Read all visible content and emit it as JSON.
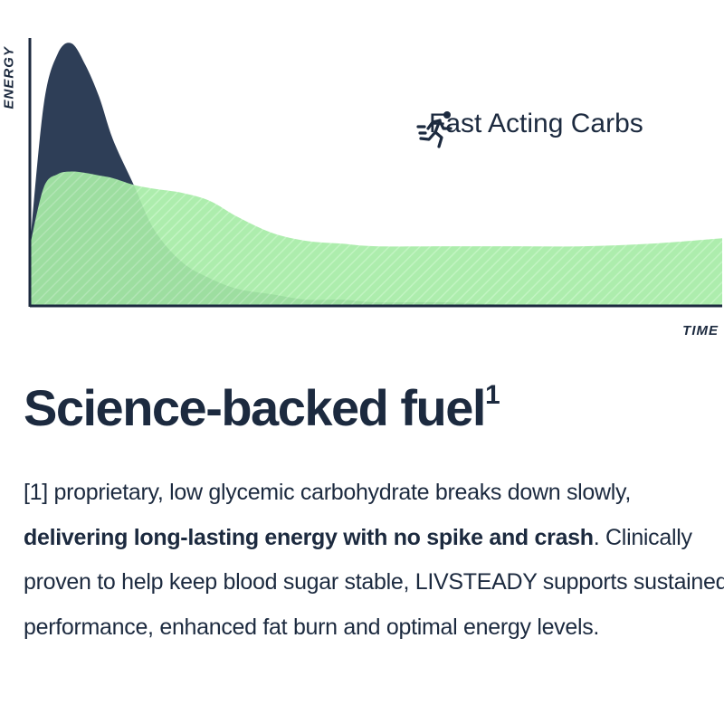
{
  "chart_data": {
    "type": "area",
    "xlabel": "TIME",
    "ylabel": "ENERGY",
    "grid": false,
    "legend_position": "top-right",
    "x": [
      0,
      2,
      4,
      6,
      8,
      10,
      12,
      15,
      18,
      22,
      26,
      30,
      35,
      40,
      45,
      50,
      60,
      70,
      80,
      90,
      100
    ],
    "series": [
      {
        "name": "Fast Acting Carbs",
        "color": "#2e3e57",
        "values": [
          22,
          75,
          94,
          98,
          90,
          78,
          62,
          45,
          28,
          16,
          10,
          6,
          4,
          2,
          2,
          1,
          1,
          0,
          0,
          0,
          0
        ]
      },
      {
        "name": "",
        "color": "#a6eca6",
        "values": [
          22,
          44,
          49,
          50,
          49.5,
          48.5,
          47.5,
          45,
          43.5,
          42,
          39,
          33,
          27,
          24,
          23,
          22,
          22,
          22,
          22,
          23,
          25
        ]
      }
    ],
    "ylim": [
      0,
      100
    ],
    "xlim": [
      0,
      100
    ]
  },
  "legend": {
    "icon": "running-person-icon",
    "label": "Fast Acting Carbs"
  },
  "headline": {
    "text": "Science-backed fuel",
    "footnote_mark": "1"
  },
  "body": {
    "part1": "[1]  proprietary, low glycemic carbohydrate breaks down slowly, ",
    "bold1": "delivering long-lasting energy with no spike and crash",
    "part2": ". Clinically proven to help keep blood sugar stable, LIVSTEADY supports sustained performance, enhanced fat burn and optimal energy levels."
  }
}
